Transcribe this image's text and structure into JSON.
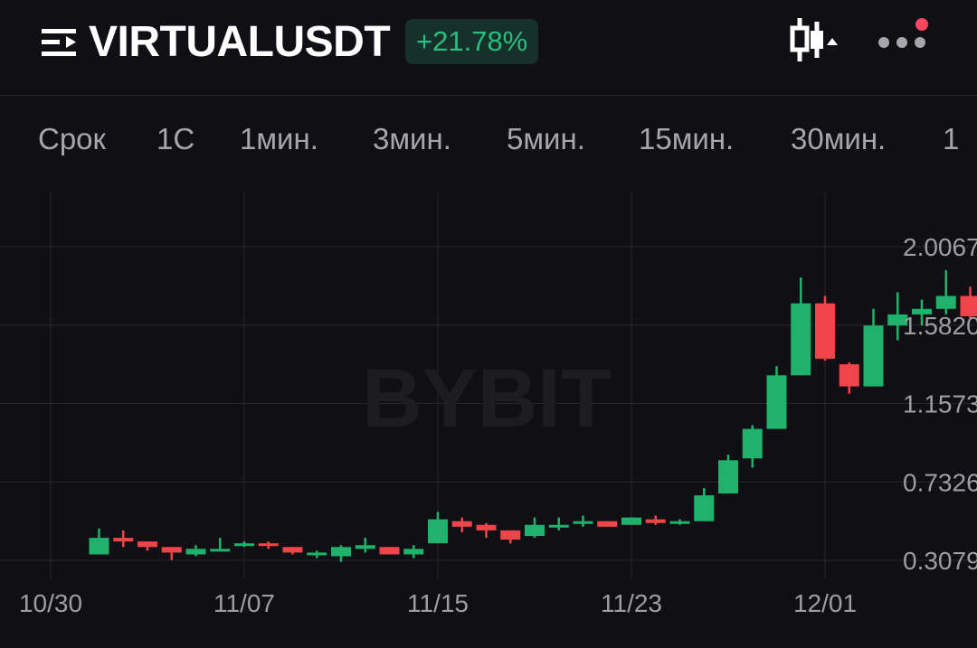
{
  "header": {
    "symbol": "VIRTUALUSDT",
    "change": "+21.78%",
    "icons": {
      "menu": "menu-collapse-icon",
      "chart_type": "candlestick-chart-icon",
      "more": "more-dots-icon"
    },
    "has_notification": true
  },
  "tabs": [
    {
      "label": "Срок"
    },
    {
      "label": "1С"
    },
    {
      "label": "1мин."
    },
    {
      "label": "3мин."
    },
    {
      "label": "5мин."
    },
    {
      "label": "15мин."
    },
    {
      "label": "30мин."
    },
    {
      "label": "1"
    }
  ],
  "colors": {
    "background": "#101014",
    "up": "#20b26c",
    "down": "#ef454a",
    "grid": "#26262c",
    "change_text": "#2bbd7f",
    "change_bg": "#16302a",
    "notification": "#f6465d"
  },
  "watermark": "BYBIT",
  "chart_data": {
    "type": "candlestick",
    "title": "",
    "xlabel": "",
    "ylabel": "",
    "x_ticks": [
      "10/30",
      "11/07",
      "11/15",
      "11/23",
      "12/01"
    ],
    "y_ticks": [
      "2.0067",
      "1.5820",
      "1.1573",
      "0.7326",
      "0.3079"
    ],
    "ylim": [
      0.3,
      2.08
    ],
    "grid": true,
    "candles": [
      {
        "date": "11/01",
        "o": 0.34,
        "h": 0.48,
        "l": 0.34,
        "c": 0.43
      },
      {
        "date": "11/02",
        "o": 0.43,
        "h": 0.47,
        "l": 0.38,
        "c": 0.41
      },
      {
        "date": "11/03",
        "o": 0.41,
        "h": 0.41,
        "l": 0.36,
        "c": 0.38
      },
      {
        "date": "11/04",
        "o": 0.38,
        "h": 0.38,
        "l": 0.31,
        "c": 0.35
      },
      {
        "date": "11/05",
        "o": 0.34,
        "h": 0.39,
        "l": 0.33,
        "c": 0.37
      },
      {
        "date": "11/06",
        "o": 0.37,
        "h": 0.43,
        "l": 0.36,
        "c": 0.37
      },
      {
        "date": "11/07",
        "o": 0.39,
        "h": 0.41,
        "l": 0.38,
        "c": 0.4
      },
      {
        "date": "11/08",
        "o": 0.4,
        "h": 0.41,
        "l": 0.37,
        "c": 0.39
      },
      {
        "date": "11/09",
        "o": 0.38,
        "h": 0.38,
        "l": 0.34,
        "c": 0.35
      },
      {
        "date": "11/10",
        "o": 0.35,
        "h": 0.36,
        "l": 0.32,
        "c": 0.35
      },
      {
        "date": "11/11",
        "o": 0.33,
        "h": 0.39,
        "l": 0.3,
        "c": 0.38
      },
      {
        "date": "11/12",
        "o": 0.37,
        "h": 0.43,
        "l": 0.35,
        "c": 0.39
      },
      {
        "date": "11/13",
        "o": 0.38,
        "h": 0.38,
        "l": 0.34,
        "c": 0.34
      },
      {
        "date": "11/14",
        "o": 0.34,
        "h": 0.39,
        "l": 0.32,
        "c": 0.37
      },
      {
        "date": "11/15",
        "o": 0.4,
        "h": 0.57,
        "l": 0.4,
        "c": 0.53
      },
      {
        "date": "11/16",
        "o": 0.52,
        "h": 0.54,
        "l": 0.46,
        "c": 0.49
      },
      {
        "date": "11/17",
        "o": 0.5,
        "h": 0.51,
        "l": 0.43,
        "c": 0.47
      },
      {
        "date": "11/18",
        "o": 0.47,
        "h": 0.47,
        "l": 0.4,
        "c": 0.42
      },
      {
        "date": "11/19",
        "o": 0.44,
        "h": 0.54,
        "l": 0.43,
        "c": 0.5
      },
      {
        "date": "11/20",
        "o": 0.5,
        "h": 0.54,
        "l": 0.47,
        "c": 0.5
      },
      {
        "date": "11/21",
        "o": 0.51,
        "h": 0.55,
        "l": 0.49,
        "c": 0.52
      },
      {
        "date": "11/22",
        "o": 0.52,
        "h": 0.52,
        "l": 0.49,
        "c": 0.49
      },
      {
        "date": "11/23",
        "o": 0.5,
        "h": 0.54,
        "l": 0.5,
        "c": 0.54
      },
      {
        "date": "11/24",
        "o": 0.53,
        "h": 0.55,
        "l": 0.5,
        "c": 0.51
      },
      {
        "date": "11/25",
        "o": 0.51,
        "h": 0.53,
        "l": 0.5,
        "c": 0.52
      },
      {
        "date": "11/26",
        "o": 0.52,
        "h": 0.7,
        "l": 0.52,
        "c": 0.66
      },
      {
        "date": "11/27",
        "o": 0.67,
        "h": 0.88,
        "l": 0.67,
        "c": 0.85
      },
      {
        "date": "11/28",
        "o": 0.86,
        "h": 1.04,
        "l": 0.81,
        "c": 1.02
      },
      {
        "date": "11/29",
        "o": 1.02,
        "h": 1.36,
        "l": 1.02,
        "c": 1.31
      },
      {
        "date": "11/30",
        "o": 1.31,
        "h": 1.84,
        "l": 1.31,
        "c": 1.7
      },
      {
        "date": "12/01",
        "o": 1.7,
        "h": 1.74,
        "l": 1.39,
        "c": 1.4
      },
      {
        "date": "12/02",
        "o": 1.37,
        "h": 1.38,
        "l": 1.21,
        "c": 1.25
      },
      {
        "date": "12/03",
        "o": 1.25,
        "h": 1.67,
        "l": 1.25,
        "c": 1.58
      },
      {
        "date": "12/04",
        "o": 1.58,
        "h": 1.76,
        "l": 1.5,
        "c": 1.64
      },
      {
        "date": "12/05",
        "o": 1.64,
        "h": 1.72,
        "l": 1.58,
        "c": 1.67
      },
      {
        "date": "12/06",
        "o": 1.67,
        "h": 1.88,
        "l": 1.64,
        "c": 1.74
      },
      {
        "date": "12/07",
        "o": 1.74,
        "h": 1.79,
        "l": 1.62,
        "c": 1.63
      }
    ]
  }
}
